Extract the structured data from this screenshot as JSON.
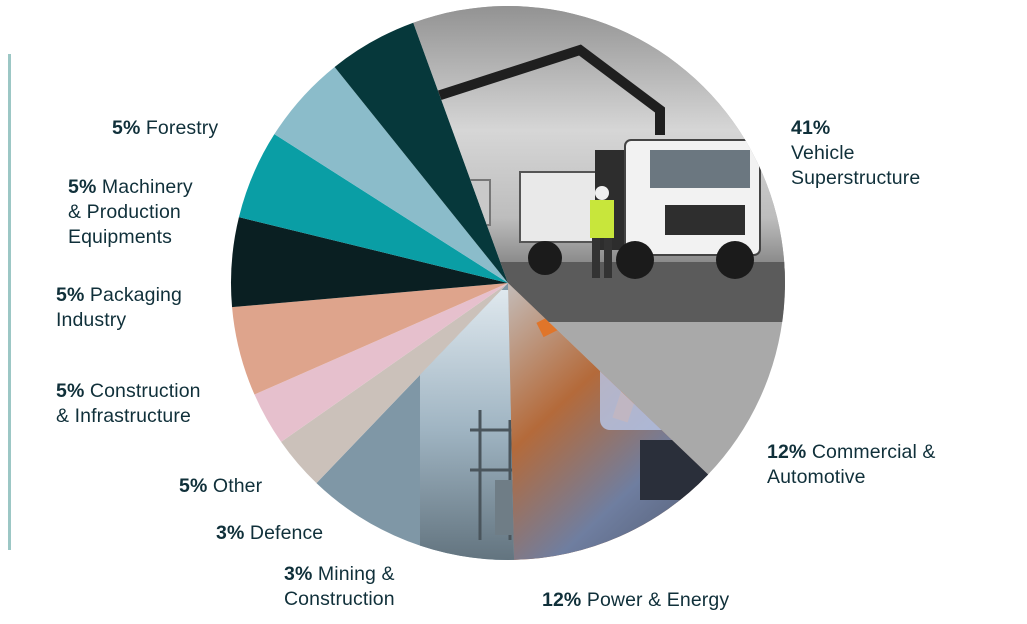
{
  "chart_data": {
    "type": "pie",
    "title": "",
    "slices": [
      {
        "label": "Vehicle Superstructure",
        "value": 41,
        "pct_text": "41%",
        "name_lines": [
          "Vehicle",
          "Superstructure"
        ],
        "fill": "#a9a9a9",
        "style": "photo-crane-truck"
      },
      {
        "label": "Commercial & Automotive",
        "value": 12,
        "pct_text": "12%",
        "name_lines": [
          "Commercial &",
          "Automotive"
        ],
        "fill": "#b46a3a",
        "style": "photo-robots"
      },
      {
        "label": "Power & Energy",
        "value": 12,
        "pct_text": "12%",
        "name_lines": [
          "Power & Energy"
        ],
        "fill": "#7f97a6",
        "style": "photo-substation"
      },
      {
        "label": "Mining & Construction",
        "value": 3,
        "pct_text": "3%",
        "name_lines": [
          "Mining &",
          "Construction"
        ],
        "fill": "#cbc1ba"
      },
      {
        "label": "Defence",
        "value": 3,
        "pct_text": "3%",
        "name_lines": [
          "Defence"
        ],
        "fill": "#e6c0cd"
      },
      {
        "label": "Other",
        "value": 5,
        "pct_text": "5%",
        "name_lines": [
          "Other"
        ],
        "fill": "#dea48c"
      },
      {
        "label": "Construction & Infrastructure",
        "value": 5,
        "pct_text": "5%",
        "name_lines": [
          "Construction",
          "& Infrastructure"
        ],
        "fill": "#0a1f22"
      },
      {
        "label": "Packaging Industry",
        "value": 5,
        "pct_text": "5%",
        "name_lines": [
          "Packaging",
          "Industry"
        ],
        "fill": "#0a9ea5"
      },
      {
        "label": "Machinery & Production Equipments",
        "value": 5,
        "pct_text": "5%",
        "name_lines": [
          "Machinery",
          "& Production",
          "Equipments"
        ],
        "fill": "#8bbcca"
      },
      {
        "label": "Forestry",
        "value": 5,
        "pct_text": "5%",
        "name_lines": [
          "Forestry"
        ],
        "fill": "#06383b"
      }
    ]
  }
}
